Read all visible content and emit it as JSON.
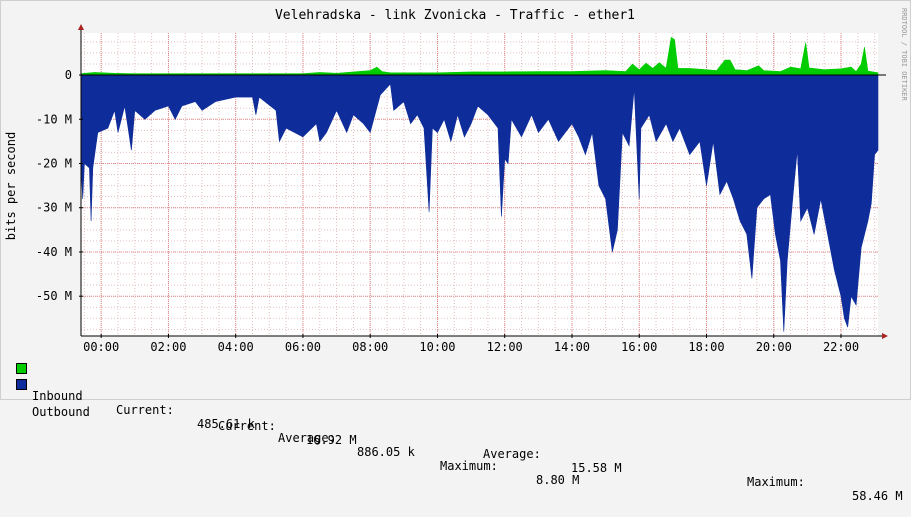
{
  "chart_data": {
    "type": "area",
    "title": "Velehradska - link Zvonicka - Traffic - ether1",
    "ylabel": "bits per second",
    "watermark": "RRDTOOL / TOBI OETIKER",
    "x_range_hours": [
      -0.6,
      23.1
    ],
    "x_tick_labels": [
      "00:00",
      "02:00",
      "04:00",
      "06:00",
      "08:00",
      "10:00",
      "12:00",
      "14:00",
      "16:00",
      "18:00",
      "20:00",
      "22:00"
    ],
    "ylim": [
      -59,
      9.5
    ],
    "y_tick_labels": [
      "0",
      "-10 M",
      "-20 M",
      "-30 M",
      "-40 M",
      "-50 M"
    ],
    "y_tick_values": [
      0,
      -10,
      -20,
      -30,
      -40,
      -50
    ],
    "grid": true,
    "colors": {
      "background": "#f3f3f3",
      "canvas": "#ffffff",
      "inbound": "#00cc00",
      "outbound": "#0f2d9a",
      "minor_grid": "#e3bfbf",
      "major_grid": "#e08a8a",
      "axis": "#000000",
      "arrow": "#aa2222"
    },
    "series": [
      {
        "name": "Inbound",
        "unit": "Mbit/s",
        "points": [
          [
            -0.6,
            0.3
          ],
          [
            -0.2,
            0.6
          ],
          [
            0.4,
            0.4
          ],
          [
            1.0,
            0.3
          ],
          [
            2.0,
            0.3
          ],
          [
            3.0,
            0.3
          ],
          [
            4.0,
            0.3
          ],
          [
            5.0,
            0.3
          ],
          [
            6.0,
            0.3
          ],
          [
            6.5,
            0.6
          ],
          [
            7.0,
            0.4
          ],
          [
            7.5,
            0.7
          ],
          [
            8.0,
            1.0
          ],
          [
            8.2,
            1.8
          ],
          [
            8.35,
            0.8
          ],
          [
            8.6,
            0.5
          ],
          [
            9.0,
            0.5
          ],
          [
            10.0,
            0.5
          ],
          [
            11.0,
            0.7
          ],
          [
            12.0,
            0.7
          ],
          [
            13.0,
            0.8
          ],
          [
            14.0,
            0.8
          ],
          [
            15.0,
            1.0
          ],
          [
            15.6,
            0.8
          ],
          [
            15.8,
            2.5
          ],
          [
            16.0,
            1.2
          ],
          [
            16.2,
            2.7
          ],
          [
            16.4,
            1.5
          ],
          [
            16.6,
            2.8
          ],
          [
            16.8,
            1.5
          ],
          [
            16.95,
            8.5
          ],
          [
            17.05,
            8.0
          ],
          [
            17.15,
            1.5
          ],
          [
            17.5,
            1.5
          ],
          [
            18.0,
            1.2
          ],
          [
            18.3,
            1.0
          ],
          [
            18.55,
            3.4
          ],
          [
            18.7,
            3.4
          ],
          [
            18.85,
            1.2
          ],
          [
            19.2,
            1.0
          ],
          [
            19.55,
            2.1
          ],
          [
            19.7,
            1.0
          ],
          [
            20.2,
            0.8
          ],
          [
            20.5,
            1.8
          ],
          [
            20.8,
            1.4
          ],
          [
            20.95,
            7.3
          ],
          [
            21.05,
            1.6
          ],
          [
            21.5,
            1.2
          ],
          [
            22.0,
            1.4
          ],
          [
            22.3,
            1.8
          ],
          [
            22.45,
            0.8
          ],
          [
            22.6,
            2.5
          ],
          [
            22.7,
            6.3
          ],
          [
            22.8,
            0.9
          ],
          [
            23.1,
            0.5
          ]
        ]
      },
      {
        "name": "Outbound",
        "unit": "Mbit/s",
        "points": [
          [
            -0.6,
            -20.0
          ],
          [
            -0.55,
            -28.0
          ],
          [
            -0.5,
            -20.0
          ],
          [
            -0.35,
            -21.0
          ],
          [
            -0.3,
            -33.0
          ],
          [
            -0.25,
            -21.0
          ],
          [
            -0.1,
            -13.0
          ],
          [
            0.2,
            -12.0
          ],
          [
            0.4,
            -8.0
          ],
          [
            0.5,
            -13.0
          ],
          [
            0.7,
            -7.0
          ],
          [
            0.8,
            -12.0
          ],
          [
            0.9,
            -17.0
          ],
          [
            1.0,
            -8.0
          ],
          [
            1.3,
            -10.0
          ],
          [
            1.6,
            -8.0
          ],
          [
            2.0,
            -7.0
          ],
          [
            2.2,
            -10.0
          ],
          [
            2.4,
            -7.0
          ],
          [
            2.8,
            -6.0
          ],
          [
            3.0,
            -8.0
          ],
          [
            3.4,
            -6.0
          ],
          [
            4.0,
            -5.0
          ],
          [
            4.5,
            -5.0
          ],
          [
            4.6,
            -9.0
          ],
          [
            4.7,
            -5.0
          ],
          [
            5.2,
            -8.0
          ],
          [
            5.3,
            -15.0
          ],
          [
            5.5,
            -12.0
          ],
          [
            6.0,
            -14.0
          ],
          [
            6.4,
            -11.0
          ],
          [
            6.5,
            -15.0
          ],
          [
            6.7,
            -13.0
          ],
          [
            7.0,
            -8.0
          ],
          [
            7.3,
            -13.0
          ],
          [
            7.5,
            -9.0
          ],
          [
            7.8,
            -11.0
          ],
          [
            8.0,
            -13.0
          ],
          [
            8.3,
            -4.5
          ],
          [
            8.6,
            -2.0
          ],
          [
            8.7,
            -8.0
          ],
          [
            9.0,
            -6.0
          ],
          [
            9.2,
            -11.0
          ],
          [
            9.4,
            -9.0
          ],
          [
            9.6,
            -12.0
          ],
          [
            9.75,
            -31.0
          ],
          [
            9.85,
            -12.0
          ],
          [
            10.0,
            -13.0
          ],
          [
            10.2,
            -10.0
          ],
          [
            10.4,
            -15.0
          ],
          [
            10.6,
            -9.0
          ],
          [
            10.8,
            -14.0
          ],
          [
            11.0,
            -11.0
          ],
          [
            11.2,
            -7.0
          ],
          [
            11.5,
            -9.0
          ],
          [
            11.8,
            -12.0
          ],
          [
            11.9,
            -32.0
          ],
          [
            12.0,
            -19.0
          ],
          [
            12.1,
            -20.0
          ],
          [
            12.2,
            -10.0
          ],
          [
            12.5,
            -14.0
          ],
          [
            12.8,
            -9.0
          ],
          [
            13.0,
            -13.0
          ],
          [
            13.3,
            -10.0
          ],
          [
            13.6,
            -15.0
          ],
          [
            13.8,
            -13.0
          ],
          [
            14.0,
            -11.0
          ],
          [
            14.2,
            -14.0
          ],
          [
            14.4,
            -18.0
          ],
          [
            14.6,
            -13.0
          ],
          [
            14.8,
            -25.0
          ],
          [
            15.0,
            -28.0
          ],
          [
            15.2,
            -40.0
          ],
          [
            15.35,
            -35.0
          ],
          [
            15.5,
            -13.0
          ],
          [
            15.7,
            -16.0
          ],
          [
            15.85,
            -3.0
          ],
          [
            16.0,
            -28.0
          ],
          [
            16.05,
            -12.0
          ],
          [
            16.3,
            -9.0
          ],
          [
            16.5,
            -15.0
          ],
          [
            16.8,
            -11.0
          ],
          [
            17.0,
            -15.0
          ],
          [
            17.2,
            -12.0
          ],
          [
            17.5,
            -18.0
          ],
          [
            17.8,
            -15.0
          ],
          [
            18.0,
            -25.0
          ],
          [
            18.2,
            -15.0
          ],
          [
            18.4,
            -27.0
          ],
          [
            18.6,
            -24.0
          ],
          [
            18.8,
            -28.0
          ],
          [
            19.0,
            -33.0
          ],
          [
            19.2,
            -36.0
          ],
          [
            19.35,
            -46.0
          ],
          [
            19.5,
            -30.0
          ],
          [
            19.7,
            -28.0
          ],
          [
            19.9,
            -27.0
          ],
          [
            20.05,
            -36.0
          ],
          [
            20.2,
            -42.0
          ],
          [
            20.3,
            -58.0
          ],
          [
            20.4,
            -42.0
          ],
          [
            20.6,
            -25.0
          ],
          [
            20.7,
            -17.0
          ],
          [
            20.8,
            -33.0
          ],
          [
            21.0,
            -30.0
          ],
          [
            21.2,
            -36.0
          ],
          [
            21.4,
            -28.0
          ],
          [
            21.6,
            -36.0
          ],
          [
            21.8,
            -44.0
          ],
          [
            22.0,
            -50.0
          ],
          [
            22.1,
            -55.0
          ],
          [
            22.2,
            -57.0
          ],
          [
            22.3,
            -50.0
          ],
          [
            22.45,
            -52.0
          ],
          [
            22.6,
            -39.0
          ],
          [
            22.8,
            -33.0
          ],
          [
            22.9,
            -29.0
          ],
          [
            23.0,
            -18.0
          ],
          [
            23.1,
            -17.0
          ]
        ]
      }
    ]
  },
  "legend": {
    "inbound": {
      "label": "Inbound",
      "current_label": "Current:",
      "current": "485.61 k",
      "average_label": "Average:",
      "average": "886.05 k",
      "maximum_label": "Maximum:",
      "maximum": "8.80 M"
    },
    "outbound": {
      "label": "Outbound",
      "current_label": "Current:",
      "current": "16.92 M",
      "average_label": "Average:",
      "average": "15.58 M",
      "maximum_label": "Maximum:",
      "maximum": "58.46 M"
    }
  }
}
